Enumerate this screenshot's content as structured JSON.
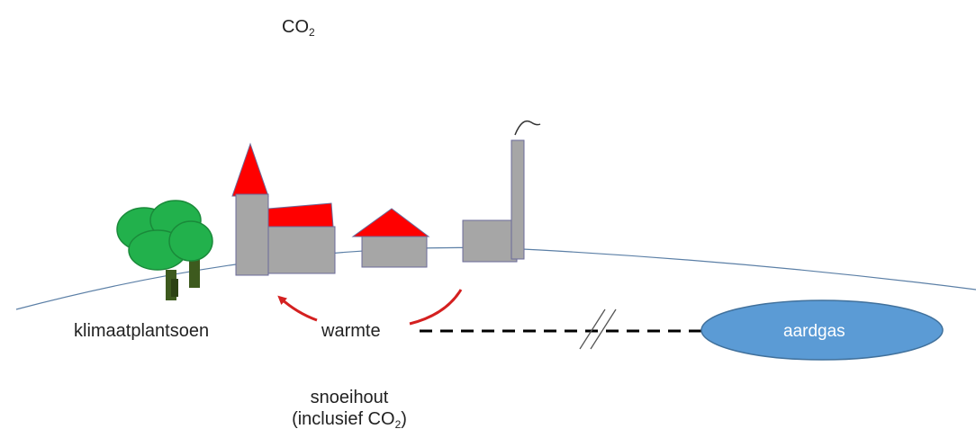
{
  "labels": {
    "co2_prefix": "CO",
    "co2_subscript": "2",
    "klimaatplantsoen": "klimaatplantsoen",
    "warmte": "warmte",
    "aardgas": "aardgas",
    "snoeihout_line1": "snoeihout",
    "snoeihout_line2_prefix": "(inclusief CO",
    "snoeihout_line2_subscript": "2",
    "snoeihout_line2_suffix": ")"
  },
  "colors": {
    "roof": "#ff0000",
    "wall": "#a6a6a6",
    "tree_foliage": "#22b14c",
    "tree_trunk": "#3d5a1e",
    "ground_line": "#5b7fa6",
    "gas_field": "#5b9bd5",
    "arrow": "#d42020",
    "pipeline": "#000000"
  },
  "icons": {
    "trees": "tree-cluster-icon",
    "church": "church-icon",
    "house": "house-icon",
    "factory": "factory-icon",
    "gas_field": "gas-reservoir-ellipse"
  }
}
